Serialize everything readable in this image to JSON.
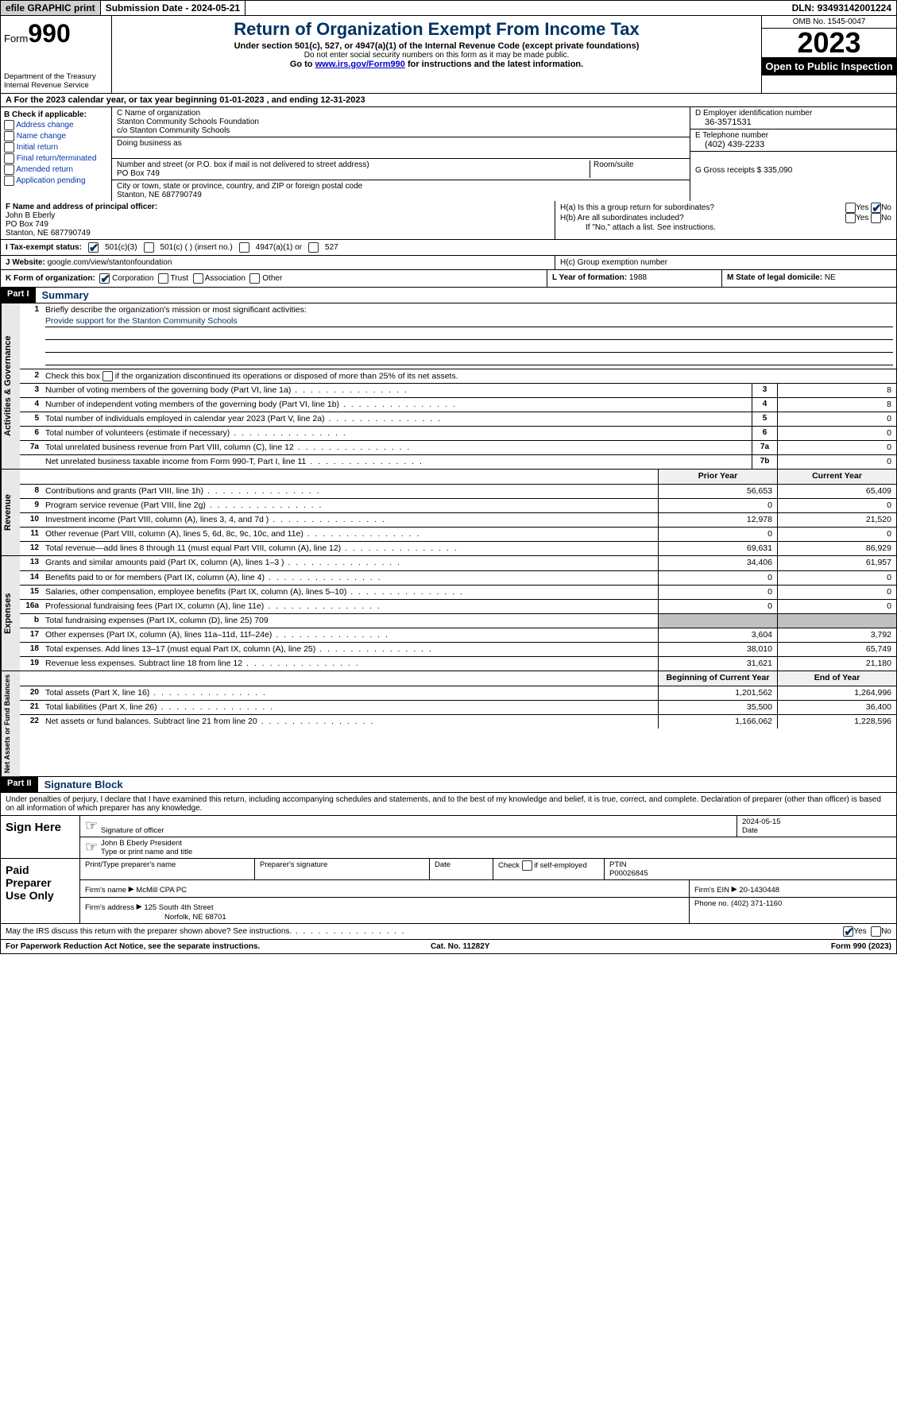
{
  "topbar": {
    "efile": "efile GRAPHIC print",
    "sub_label": "Submission Date - ",
    "sub_date": "2024-05-21",
    "dln_label": "DLN: ",
    "dln": "93493142001224"
  },
  "header": {
    "form_prefix": "Form",
    "form_num": "990",
    "dept": "Department of the Treasury\nInternal Revenue Service",
    "title": "Return of Organization Exempt From Income Tax",
    "sub1": "Under section 501(c), 527, or 4947(a)(1) of the Internal Revenue Code (except private foundations)",
    "sub2": "Do not enter social security numbers on this form as it may be made public.",
    "go_prefix": "Go to ",
    "go_link": "www.irs.gov/Form990",
    "go_suffix": " for instructions and the latest information.",
    "omb": "OMB No. 1545-0047",
    "year": "2023",
    "inspect": "Open to Public Inspection"
  },
  "row_a": {
    "text_a": "A For the 2023 calendar year, or tax year beginning ",
    "begin": "01-01-2023",
    "mid": " , and ending ",
    "end": "12-31-2023"
  },
  "col_b": {
    "hdr": "B Check if applicable:",
    "opts": [
      "Address change",
      "Name change",
      "Initial return",
      "Final return/terminated",
      "Amended return",
      "Application pending"
    ]
  },
  "col_c": {
    "name_lbl": "C Name of organization",
    "name1": "Stanton Community Schools Foundation",
    "name2": "c/o Stanton Community Schools",
    "dba_lbl": "Doing business as",
    "addr_lbl": "Number and street (or P.O. box if mail is not delivered to street address)",
    "room_lbl": "Room/suite",
    "addr": "PO Box 749",
    "city_lbl": "City or town, state or province, country, and ZIP or foreign postal code",
    "city": "Stanton, NE  687790749"
  },
  "col_de": {
    "d_lbl": "D Employer identification number",
    "d_val": "36-3571531",
    "e_lbl": "E Telephone number",
    "e_val": "(402) 439-2233",
    "g_lbl": "G Gross receipts $ ",
    "g_val": "335,090"
  },
  "col_f": {
    "lbl": "F Name and address of principal officer:",
    "name": "John B Eberly",
    "addr1": "PO Box 749",
    "addr2": "Stanton, NE  687790749"
  },
  "col_h": {
    "ha": "H(a)  Is this a group return for subordinates?",
    "hb": "H(b)  Are all subordinates included?",
    "hb_note": "If \"No,\" attach a list. See instructions.",
    "hc": "H(c)  Group exemption number ",
    "yes": "Yes",
    "no": "No"
  },
  "row_i": {
    "lbl": "I  Tax-exempt status:",
    "o1": "501(c)(3)",
    "o2": "501(c) (  ) (insert no.)",
    "o3": "4947(a)(1) or",
    "o4": "527"
  },
  "row_j": {
    "lbl": "J  Website: ",
    "val": "google.com/view/stantonfoundation"
  },
  "row_k": {
    "lbl": "K Form of organization:",
    "o1": "Corporation",
    "o2": "Trust",
    "o3": "Association",
    "o4": "Other"
  },
  "row_l": {
    "lbl": "L Year of formation: ",
    "val": "1988"
  },
  "row_m": {
    "lbl": "M State of legal domicile: ",
    "val": "NE"
  },
  "part1": {
    "hdr": "Part I",
    "title": "Summary"
  },
  "summary": {
    "gov_tab": "Activities & Governance",
    "rev_tab": "Revenue",
    "exp_tab": "Expenses",
    "net_tab": "Net Assets or Fund Balances",
    "l1": "Briefly describe the organization's mission or most significant activities:",
    "mission": "Provide support for the Stanton Community Schools",
    "l2": "Check this box      if the organization discontinued its operations or disposed of more than 25% of its net assets.",
    "rows_gov": [
      {
        "n": "3",
        "t": "Number of voting members of the governing body (Part VI, line 1a)",
        "box": "3",
        "v": "8"
      },
      {
        "n": "4",
        "t": "Number of independent voting members of the governing body (Part VI, line 1b)",
        "box": "4",
        "v": "8"
      },
      {
        "n": "5",
        "t": "Total number of individuals employed in calendar year 2023 (Part V, line 2a)",
        "box": "5",
        "v": "0"
      },
      {
        "n": "6",
        "t": "Total number of volunteers (estimate if necessary)",
        "box": "6",
        "v": "0"
      },
      {
        "n": "7a",
        "t": "Total unrelated business revenue from Part VIII, column (C), line 12",
        "box": "7a",
        "v": "0"
      },
      {
        "n": "",
        "t": "Net unrelated business taxable income from Form 990-T, Part I, line 11",
        "box": "7b",
        "v": "0"
      }
    ],
    "col_prior": "Prior Year",
    "col_curr": "Current Year",
    "rows_rev": [
      {
        "n": "8",
        "t": "Contributions and grants (Part VIII, line 1h)",
        "p": "56,653",
        "c": "65,409"
      },
      {
        "n": "9",
        "t": "Program service revenue (Part VIII, line 2g)",
        "p": "0",
        "c": "0"
      },
      {
        "n": "10",
        "t": "Investment income (Part VIII, column (A), lines 3, 4, and 7d )",
        "p": "12,978",
        "c": "21,520"
      },
      {
        "n": "11",
        "t": "Other revenue (Part VIII, column (A), lines 5, 6d, 8c, 9c, 10c, and 11e)",
        "p": "0",
        "c": "0"
      },
      {
        "n": "12",
        "t": "Total revenue—add lines 8 through 11 (must equal Part VIII, column (A), line 12)",
        "p": "69,631",
        "c": "86,929"
      }
    ],
    "rows_exp": [
      {
        "n": "13",
        "t": "Grants and similar amounts paid (Part IX, column (A), lines 1–3 )",
        "p": "34,406",
        "c": "61,957"
      },
      {
        "n": "14",
        "t": "Benefits paid to or for members (Part IX, column (A), line 4)",
        "p": "0",
        "c": "0"
      },
      {
        "n": "15",
        "t": "Salaries, other compensation, employee benefits (Part IX, column (A), lines 5–10)",
        "p": "0",
        "c": "0"
      },
      {
        "n": "16a",
        "t": "Professional fundraising fees (Part IX, column (A), line 11e)",
        "p": "0",
        "c": "0"
      }
    ],
    "l16b": "Total fundraising expenses (Part IX, column (D), line 25) ",
    "l16b_val": "709",
    "rows_exp2": [
      {
        "n": "17",
        "t": "Other expenses (Part IX, column (A), lines 11a–11d, 11f–24e)",
        "p": "3,604",
        "c": "3,792"
      },
      {
        "n": "18",
        "t": "Total expenses. Add lines 13–17 (must equal Part IX, column (A), line 25)",
        "p": "38,010",
        "c": "65,749"
      },
      {
        "n": "19",
        "t": "Revenue less expenses. Subtract line 18 from line 12",
        "p": "31,621",
        "c": "21,180"
      }
    ],
    "col_beg": "Beginning of Current Year",
    "col_end": "End of Year",
    "rows_net": [
      {
        "n": "20",
        "t": "Total assets (Part X, line 16)",
        "p": "1,201,562",
        "c": "1,264,996"
      },
      {
        "n": "21",
        "t": "Total liabilities (Part X, line 26)",
        "p": "35,500",
        "c": "36,400"
      },
      {
        "n": "22",
        "t": "Net assets or fund balances. Subtract line 21 from line 20",
        "p": "1,166,062",
        "c": "1,228,596"
      }
    ]
  },
  "part2": {
    "hdr": "Part II",
    "title": "Signature Block"
  },
  "sig": {
    "intro": "Under penalties of perjury, I declare that I have examined this return, including accompanying schedules and statements, and to the best of my knowledge and belief, it is true, correct, and complete. Declaration of preparer (other than officer) is based on all information of which preparer has any knowledge.",
    "sign_here": "Sign Here",
    "sig_off": "Signature of officer",
    "sig_date": "Date",
    "date_val": "2024-05-15",
    "officer": "John B Eberly  President",
    "type_lbl": "Type or print name and title",
    "paid": "Paid Preparer Use Only",
    "p_name_lbl": "Print/Type preparer's name",
    "p_sig_lbl": "Preparer's signature",
    "p_date_lbl": "Date",
    "p_self": "Check        if self-employed",
    "ptin_lbl": "PTIN",
    "ptin": "P00026845",
    "firm_name_lbl": "Firm's name  ",
    "firm_name": "McMill CPA PC",
    "firm_ein_lbl": "Firm's EIN  ",
    "firm_ein": "20-1430448",
    "firm_addr_lbl": "Firm's address ",
    "firm_addr1": "125 South 4th Street",
    "firm_addr2": "Norfolk, NE  68701",
    "phone_lbl": "Phone no. ",
    "phone": "(402) 371-1160",
    "discuss": "May the IRS discuss this return with the preparer shown above? See instructions."
  },
  "footer": {
    "left": "For Paperwork Reduction Act Notice, see the separate instructions.",
    "mid": "Cat. No. 11282Y",
    "right": "Form 990 (2023)"
  },
  "colors": {
    "link": "#0000cc",
    "navy": "#003366",
    "grey_bg": "#e8e8e8"
  }
}
